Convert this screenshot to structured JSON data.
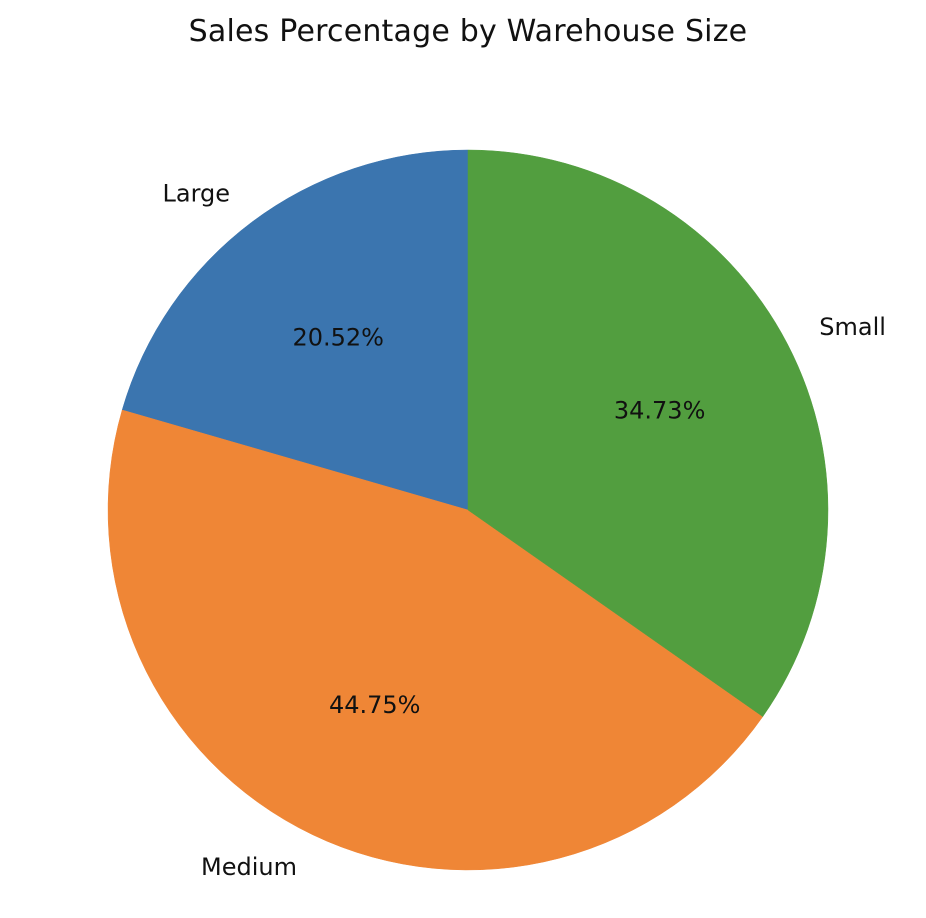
{
  "chart_data": {
    "type": "pie",
    "title": "Sales Percentage by Warehouse Size",
    "labels": [
      "Large",
      "Medium",
      "Small"
    ],
    "values": [
      20.52,
      44.75,
      34.73
    ],
    "value_labels": [
      "20.52%",
      "44.75%",
      "34.73%"
    ],
    "colors": [
      "#3b75af",
      "#ef8636",
      "#529e3f"
    ],
    "start_angle": 90,
    "direction": "counterclockwise"
  }
}
